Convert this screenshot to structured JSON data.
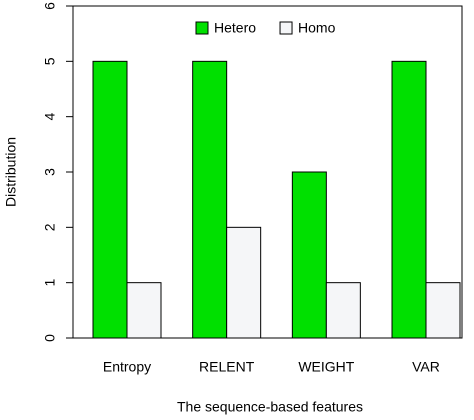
{
  "chart_data": {
    "type": "bar",
    "x_label": "The sequence-based features",
    "y_label": "Distribution",
    "categories": [
      "Entropy",
      "RELENT",
      "WEIGHT",
      "VAR"
    ],
    "series": [
      {
        "name": "Hetero",
        "color": "#00e000",
        "values": [
          5,
          5,
          3,
          5
        ]
      },
      {
        "name": "Homo",
        "color": "#f5f6f8",
        "values": [
          1,
          2,
          1,
          1
        ]
      }
    ],
    "ylim": [
      0,
      6
    ],
    "yticks": [
      0,
      1,
      2,
      3,
      4,
      5,
      6
    ],
    "legend": "top"
  }
}
